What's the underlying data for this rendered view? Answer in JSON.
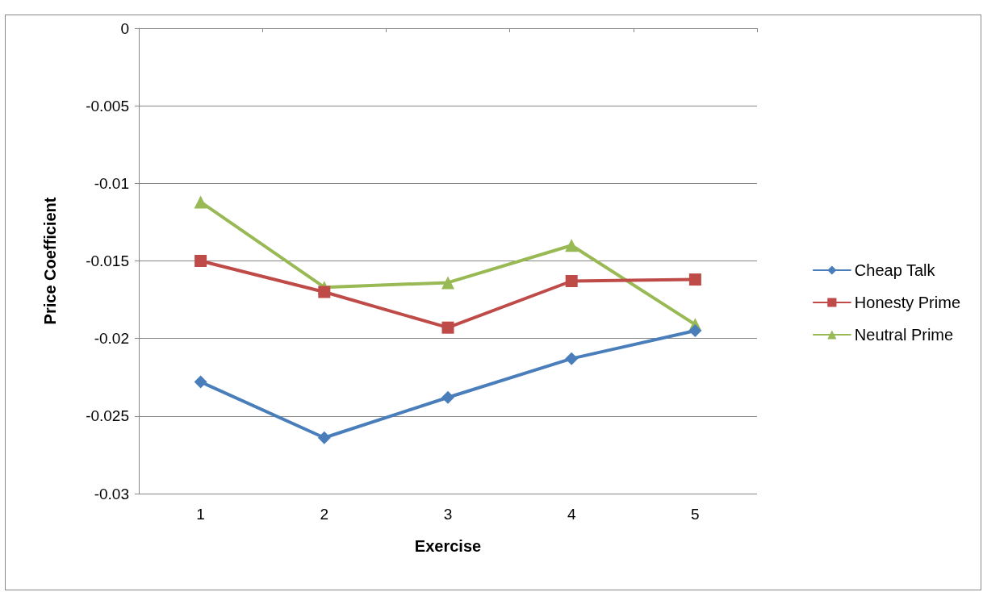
{
  "chart_data": {
    "type": "line",
    "xlabel": "Exercise",
    "ylabel": "Price Coefficient",
    "categories": [
      "1",
      "2",
      "3",
      "4",
      "5"
    ],
    "series": [
      {
        "name": "Cheap Talk",
        "color": "#4a7ebb",
        "marker": "diamond",
        "values": [
          -0.0228,
          -0.0264,
          -0.0238,
          -0.0213,
          -0.0195
        ]
      },
      {
        "name": "Honesty Prime",
        "color": "#be4b48",
        "marker": "square",
        "values": [
          -0.015,
          -0.017,
          -0.0193,
          -0.0163,
          -0.0162
        ]
      },
      {
        "name": "Neutral Prime",
        "color": "#98b954",
        "marker": "triangle",
        "values": [
          -0.0112,
          -0.0167,
          -0.0164,
          -0.014,
          -0.0191
        ]
      }
    ],
    "ylim": [
      -0.03,
      0
    ],
    "yticks": [
      -0.03,
      -0.025,
      -0.02,
      -0.015,
      -0.01,
      -0.005,
      0
    ],
    "grid": "y",
    "legend": "right",
    "line_style": "solid"
  }
}
